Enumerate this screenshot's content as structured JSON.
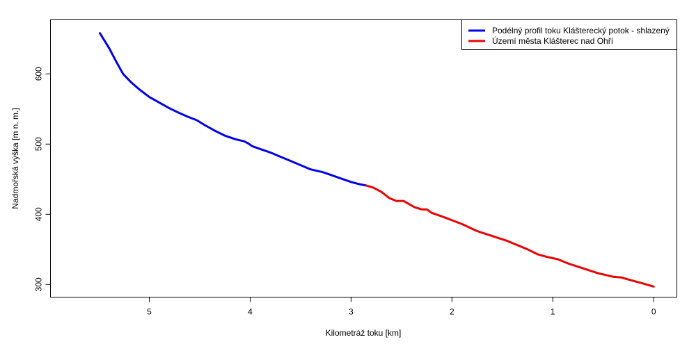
{
  "chart_data": {
    "type": "line",
    "xlabel": "Kilometráž toku [km]",
    "ylabel": "Nadmořská výška [m n. m.]",
    "x_reversed": true,
    "xlim": [
      -0.23,
      5.98
    ],
    "ylim": [
      282,
      677
    ],
    "xticks": [
      5,
      4,
      3,
      2,
      1,
      0
    ],
    "yticks": [
      300,
      400,
      500,
      600
    ],
    "grid": false,
    "legend_position": "top-right",
    "series": [
      {
        "name": "Podélný profil toku Klášterecký potok - shlazený",
        "color": "#0000ee",
        "x": [
          5.49,
          5.4,
          5.33,
          5.26,
          5.18,
          5.1,
          5.0,
          4.9,
          4.8,
          4.7,
          4.62,
          4.53,
          4.45,
          4.35,
          4.25,
          4.15,
          4.06,
          4.02,
          3.98,
          3.9,
          3.8,
          3.7,
          3.6,
          3.5,
          3.4,
          3.28,
          3.2,
          3.1,
          3.0,
          2.92,
          2.85
        ],
        "y": [
          658,
          637,
          618,
          600,
          588,
          578,
          567,
          559,
          551,
          544,
          539,
          534,
          527,
          519,
          512,
          507,
          504,
          501,
          497,
          493,
          488,
          482,
          476,
          470,
          464,
          460,
          456,
          451,
          446,
          443,
          441
        ]
      },
      {
        "name": "Území města Klášterec nad Ohří",
        "color": "#ee0000",
        "x": [
          2.85,
          2.78,
          2.7,
          2.62,
          2.55,
          2.48,
          2.43,
          2.37,
          2.3,
          2.25,
          2.2,
          2.1,
          1.9,
          1.75,
          1.6,
          1.45,
          1.35,
          1.25,
          1.15,
          1.05,
          0.95,
          0.85,
          0.7,
          0.55,
          0.4,
          0.32,
          0.25,
          0.12,
          0.0
        ],
        "y": [
          441,
          438,
          432,
          423,
          419,
          419,
          415,
          410,
          407,
          407,
          402,
          397,
          386,
          376,
          369,
          362,
          356,
          350,
          343,
          339,
          336,
          330,
          323,
          316,
          311,
          310,
          307,
          302,
          297
        ]
      }
    ]
  }
}
